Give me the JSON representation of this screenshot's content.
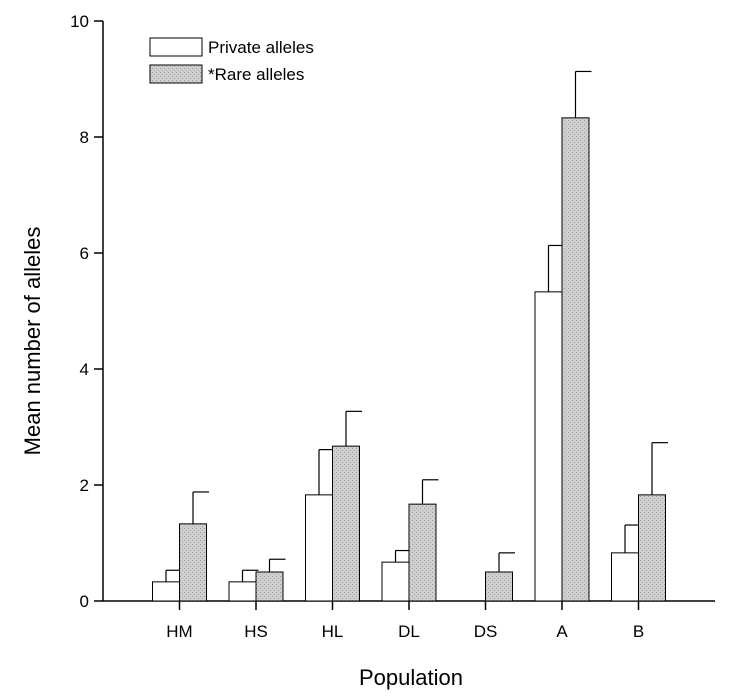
{
  "chart_data": {
    "type": "bar",
    "title": "",
    "xlabel": "Population",
    "ylabel": "Mean number of alleles",
    "ylim": [
      0,
      10
    ],
    "yticks": [
      0,
      2,
      4,
      6,
      8,
      10
    ],
    "categories": [
      "HM",
      "HS",
      "HL",
      "DL",
      "DS",
      "A",
      "B"
    ],
    "series": [
      {
        "name": "Private alleles",
        "fill": "#ffffff",
        "values": [
          0.33,
          0.33,
          1.83,
          0.67,
          0.0,
          5.33,
          0.83
        ],
        "errors": [
          0.2,
          0.2,
          0.78,
          0.2,
          0.0,
          0.8,
          0.48
        ]
      },
      {
        "name": "*Rare alleles",
        "fill": "#c8c8c8",
        "values": [
          1.33,
          0.5,
          2.67,
          1.67,
          0.5,
          8.33,
          1.83
        ],
        "errors": [
          0.55,
          0.22,
          0.6,
          0.42,
          0.33,
          0.8,
          0.9
        ]
      }
    ],
    "legend_position": "top-left",
    "grid": false,
    "error_bars": "upper"
  }
}
